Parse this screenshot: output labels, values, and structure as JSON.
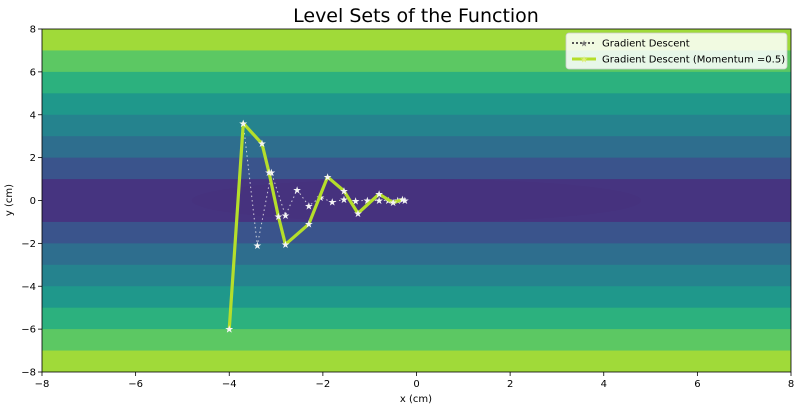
{
  "chart_data": {
    "type": "contour",
    "title": "Level Sets of the Function",
    "xlabel": "x (cm)",
    "ylabel": "y (cm)",
    "xlim": [
      -8,
      8
    ],
    "ylim": [
      -8,
      8
    ],
    "x_ticks": [
      "−8",
      "−6",
      "−4",
      "−2",
      "0",
      "2",
      "4",
      "6",
      "8"
    ],
    "y_ticks": [
      "8",
      "6",
      "4",
      "2",
      "0",
      "−2",
      "−4",
      "−6",
      "−8"
    ],
    "x_tick_values": [
      -8,
      -6,
      -4,
      -2,
      0,
      2,
      4,
      6,
      8
    ],
    "y_tick_values": [
      8,
      6,
      4,
      2,
      0,
      -2,
      -4,
      -6,
      -8
    ],
    "contour_levels": [
      {
        "halfwidth_y": 1.0,
        "color": "#463480"
      },
      {
        "halfwidth_y": 2.0,
        "color": "#3a548c"
      },
      {
        "halfwidth_y": 3.0,
        "color": "#2e6e8e"
      },
      {
        "halfwidth_y": 4.0,
        "color": "#25838e"
      },
      {
        "halfwidth_y": 5.0,
        "color": "#1f988b"
      },
      {
        "halfwidth_y": 6.0,
        "color": "#2cb17e"
      },
      {
        "halfwidth_y": 7.0,
        "color": "#5cc863"
      },
      {
        "halfwidth_y": 8.2,
        "color": "#a0da39"
      }
    ],
    "inner_ellipse": {
      "cx": 0,
      "cy": 0,
      "rx": 4.8,
      "ry": 1.0,
      "color": "#46327e"
    },
    "legend": {
      "position": "upper right",
      "entries": [
        {
          "label": "Gradient Descent",
          "color": "#fbfbfb",
          "style": "dotted"
        },
        {
          "label": "Gradient Descent (Momentum =0.5)",
          "color": "#b5de2b",
          "style": "solid"
        }
      ]
    },
    "series": [
      {
        "name": "Gradient Descent",
        "color": "#f0f0f0",
        "style": "dotted",
        "points": [
          [
            -4.0,
            -6.0
          ],
          [
            -3.7,
            3.6
          ],
          [
            -3.4,
            -2.1
          ],
          [
            -3.1,
            1.3
          ],
          [
            -2.8,
            -0.7
          ],
          [
            -2.55,
            0.5
          ],
          [
            -2.3,
            -0.25
          ],
          [
            -2.05,
            0.15
          ],
          [
            -1.8,
            -0.08
          ],
          [
            -1.55,
            0.05
          ],
          [
            -1.3,
            -0.02
          ],
          [
            -1.05,
            0.01
          ],
          [
            -0.8,
            0.0
          ],
          [
            -0.6,
            0.0
          ],
          [
            -0.4,
            0.0
          ],
          [
            -0.25,
            0.0
          ]
        ]
      },
      {
        "name": "Gradient Descent (Momentum =0.5)",
        "color": "#b5de2b",
        "style": "solid",
        "points": [
          [
            -4.0,
            -6.0
          ],
          [
            -3.7,
            3.6
          ],
          [
            -3.3,
            2.65
          ],
          [
            -3.15,
            1.3
          ],
          [
            -2.95,
            -0.75
          ],
          [
            -2.8,
            -2.05
          ],
          [
            -2.3,
            -1.1
          ],
          [
            -1.9,
            1.1
          ],
          [
            -1.55,
            0.45
          ],
          [
            -1.25,
            -0.6
          ],
          [
            -0.8,
            0.3
          ],
          [
            -0.5,
            -0.1
          ],
          [
            -0.3,
            0.05
          ]
        ]
      }
    ]
  }
}
